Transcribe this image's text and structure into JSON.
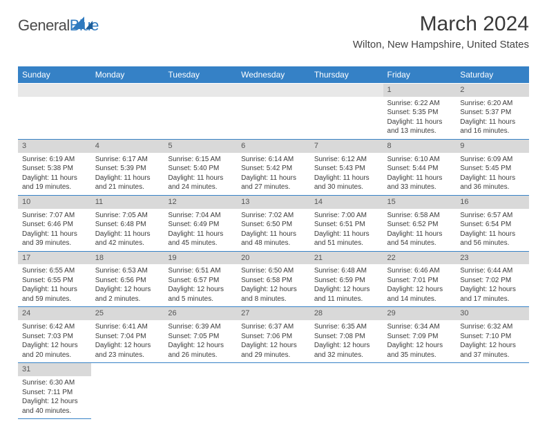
{
  "logo": {
    "word1": "General",
    "word2": "Blue"
  },
  "title": "March 2024",
  "location": "Wilton, New Hampshire, United States",
  "colors": {
    "header_bg": "#3581c6",
    "header_fg": "#ffffff",
    "daynum_bg": "#d9d9d9",
    "rule": "#3581c6",
    "text": "#3a3a3a"
  },
  "weekdays": [
    "Sunday",
    "Monday",
    "Tuesday",
    "Wednesday",
    "Thursday",
    "Friday",
    "Saturday"
  ],
  "weeks": [
    [
      null,
      null,
      null,
      null,
      null,
      {
        "n": "1",
        "l": [
          "Sunrise: 6:22 AM",
          "Sunset: 5:35 PM",
          "Daylight: 11 hours",
          "and 13 minutes."
        ]
      },
      {
        "n": "2",
        "l": [
          "Sunrise: 6:20 AM",
          "Sunset: 5:37 PM",
          "Daylight: 11 hours",
          "and 16 minutes."
        ]
      }
    ],
    [
      {
        "n": "3",
        "l": [
          "Sunrise: 6:19 AM",
          "Sunset: 5:38 PM",
          "Daylight: 11 hours",
          "and 19 minutes."
        ]
      },
      {
        "n": "4",
        "l": [
          "Sunrise: 6:17 AM",
          "Sunset: 5:39 PM",
          "Daylight: 11 hours",
          "and 21 minutes."
        ]
      },
      {
        "n": "5",
        "l": [
          "Sunrise: 6:15 AM",
          "Sunset: 5:40 PM",
          "Daylight: 11 hours",
          "and 24 minutes."
        ]
      },
      {
        "n": "6",
        "l": [
          "Sunrise: 6:14 AM",
          "Sunset: 5:42 PM",
          "Daylight: 11 hours",
          "and 27 minutes."
        ]
      },
      {
        "n": "7",
        "l": [
          "Sunrise: 6:12 AM",
          "Sunset: 5:43 PM",
          "Daylight: 11 hours",
          "and 30 minutes."
        ]
      },
      {
        "n": "8",
        "l": [
          "Sunrise: 6:10 AM",
          "Sunset: 5:44 PM",
          "Daylight: 11 hours",
          "and 33 minutes."
        ]
      },
      {
        "n": "9",
        "l": [
          "Sunrise: 6:09 AM",
          "Sunset: 5:45 PM",
          "Daylight: 11 hours",
          "and 36 minutes."
        ]
      }
    ],
    [
      {
        "n": "10",
        "l": [
          "Sunrise: 7:07 AM",
          "Sunset: 6:46 PM",
          "Daylight: 11 hours",
          "and 39 minutes."
        ]
      },
      {
        "n": "11",
        "l": [
          "Sunrise: 7:05 AM",
          "Sunset: 6:48 PM",
          "Daylight: 11 hours",
          "and 42 minutes."
        ]
      },
      {
        "n": "12",
        "l": [
          "Sunrise: 7:04 AM",
          "Sunset: 6:49 PM",
          "Daylight: 11 hours",
          "and 45 minutes."
        ]
      },
      {
        "n": "13",
        "l": [
          "Sunrise: 7:02 AM",
          "Sunset: 6:50 PM",
          "Daylight: 11 hours",
          "and 48 minutes."
        ]
      },
      {
        "n": "14",
        "l": [
          "Sunrise: 7:00 AM",
          "Sunset: 6:51 PM",
          "Daylight: 11 hours",
          "and 51 minutes."
        ]
      },
      {
        "n": "15",
        "l": [
          "Sunrise: 6:58 AM",
          "Sunset: 6:52 PM",
          "Daylight: 11 hours",
          "and 54 minutes."
        ]
      },
      {
        "n": "16",
        "l": [
          "Sunrise: 6:57 AM",
          "Sunset: 6:54 PM",
          "Daylight: 11 hours",
          "and 56 minutes."
        ]
      }
    ],
    [
      {
        "n": "17",
        "l": [
          "Sunrise: 6:55 AM",
          "Sunset: 6:55 PM",
          "Daylight: 11 hours",
          "and 59 minutes."
        ]
      },
      {
        "n": "18",
        "l": [
          "Sunrise: 6:53 AM",
          "Sunset: 6:56 PM",
          "Daylight: 12 hours",
          "and 2 minutes."
        ]
      },
      {
        "n": "19",
        "l": [
          "Sunrise: 6:51 AM",
          "Sunset: 6:57 PM",
          "Daylight: 12 hours",
          "and 5 minutes."
        ]
      },
      {
        "n": "20",
        "l": [
          "Sunrise: 6:50 AM",
          "Sunset: 6:58 PM",
          "Daylight: 12 hours",
          "and 8 minutes."
        ]
      },
      {
        "n": "21",
        "l": [
          "Sunrise: 6:48 AM",
          "Sunset: 6:59 PM",
          "Daylight: 12 hours",
          "and 11 minutes."
        ]
      },
      {
        "n": "22",
        "l": [
          "Sunrise: 6:46 AM",
          "Sunset: 7:01 PM",
          "Daylight: 12 hours",
          "and 14 minutes."
        ]
      },
      {
        "n": "23",
        "l": [
          "Sunrise: 6:44 AM",
          "Sunset: 7:02 PM",
          "Daylight: 12 hours",
          "and 17 minutes."
        ]
      }
    ],
    [
      {
        "n": "24",
        "l": [
          "Sunrise: 6:42 AM",
          "Sunset: 7:03 PM",
          "Daylight: 12 hours",
          "and 20 minutes."
        ]
      },
      {
        "n": "25",
        "l": [
          "Sunrise: 6:41 AM",
          "Sunset: 7:04 PM",
          "Daylight: 12 hours",
          "and 23 minutes."
        ]
      },
      {
        "n": "26",
        "l": [
          "Sunrise: 6:39 AM",
          "Sunset: 7:05 PM",
          "Daylight: 12 hours",
          "and 26 minutes."
        ]
      },
      {
        "n": "27",
        "l": [
          "Sunrise: 6:37 AM",
          "Sunset: 7:06 PM",
          "Daylight: 12 hours",
          "and 29 minutes."
        ]
      },
      {
        "n": "28",
        "l": [
          "Sunrise: 6:35 AM",
          "Sunset: 7:08 PM",
          "Daylight: 12 hours",
          "and 32 minutes."
        ]
      },
      {
        "n": "29",
        "l": [
          "Sunrise: 6:34 AM",
          "Sunset: 7:09 PM",
          "Daylight: 12 hours",
          "and 35 minutes."
        ]
      },
      {
        "n": "30",
        "l": [
          "Sunrise: 6:32 AM",
          "Sunset: 7:10 PM",
          "Daylight: 12 hours",
          "and 37 minutes."
        ]
      }
    ],
    [
      {
        "n": "31",
        "l": [
          "Sunrise: 6:30 AM",
          "Sunset: 7:11 PM",
          "Daylight: 12 hours",
          "and 40 minutes."
        ]
      },
      null,
      null,
      null,
      null,
      null,
      null
    ]
  ]
}
